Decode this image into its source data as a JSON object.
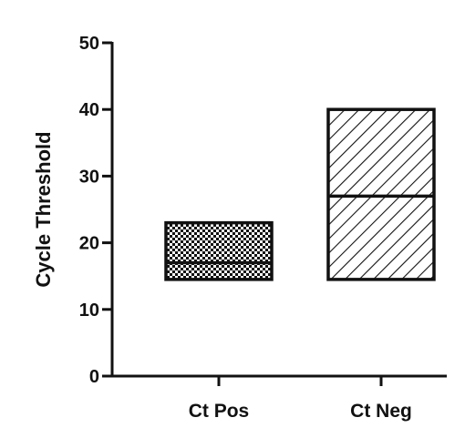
{
  "chart_data": {
    "type": "box",
    "title": "",
    "xlabel": "",
    "ylabel": "Cycle Threshold",
    "ylim": [
      0,
      50
    ],
    "yticks": [
      0,
      10,
      20,
      30,
      40,
      50
    ],
    "categories": [
      "Ct Pos",
      "Ct Neg"
    ],
    "boxes": [
      {
        "category": "Ct Pos",
        "min": 14.5,
        "median": 17,
        "max": 23,
        "pattern": "checkerboard"
      },
      {
        "category": "Ct Neg",
        "min": 14.5,
        "median": 27,
        "max": 40,
        "pattern": "diagonal-hatch"
      }
    ],
    "grid": false,
    "legend": "none"
  },
  "colors": {
    "ink": "#111111",
    "background": "#ffffff"
  }
}
